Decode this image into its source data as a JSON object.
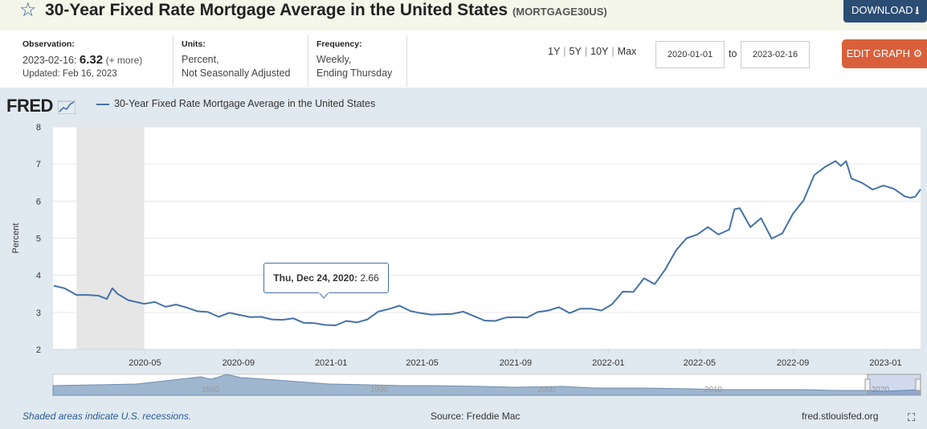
{
  "header": {
    "star_icon": "star-outline-icon",
    "title": "30-Year Fixed Rate Mortgage Average in the United States",
    "series_id": "(MORTGAGE30US)",
    "download_label": "DOWNLOAD",
    "download_icon": "download-icon"
  },
  "meta": {
    "observation_label": "Observation:",
    "observation_date": "2023-02-16:",
    "observation_value": "6.32",
    "observation_more": "(+ more)",
    "updated": "Updated: Feb 16, 2023",
    "units_label": "Units:",
    "units_line1": "Percent,",
    "units_line2": "Not Seasonally Adjusted",
    "frequency_label": "Frequency:",
    "frequency_line1": "Weekly,",
    "frequency_line2": "Ending Thursday"
  },
  "controls": {
    "range_1y": "1Y",
    "range_5y": "5Y",
    "range_10y": "10Y",
    "range_max": "Max",
    "range_sep": "|",
    "start_date": "2020-01-01",
    "to_label": "to",
    "end_date": "2023-02-16",
    "edit_label": "EDIT GRAPH",
    "edit_icon": "gear-icon"
  },
  "chart_meta": {
    "logo": "FRED",
    "footer_recession": "Shaded areas indicate U.S. recessions.",
    "footer_source": "Source: Freddie Mac",
    "footer_site": "fred.stlouisfed.org",
    "tooltip_date": "Thu, Dec 24, 2020:",
    "tooltip_value": "2.66",
    "navigator_labels": [
      "1980",
      "1990",
      "2000",
      "2010",
      "2020"
    ]
  },
  "colors": {
    "line": "#4572a7",
    "recession": "#e6e6e6",
    "edit_button": "#d9603b",
    "download_button": "#2b4d73",
    "header_bg": "#f4f6ea",
    "panel_bg": "#e1e9f0"
  },
  "chart_data": {
    "type": "line",
    "title": "30-Year Fixed Rate Mortgage Average in the United States",
    "xlabel": "",
    "ylabel": "Percent",
    "ylim": [
      2,
      8
    ],
    "yticks": [
      2,
      3,
      4,
      5,
      6,
      7,
      8
    ],
    "xticks": [
      "2020-05",
      "2020-09",
      "2021-01",
      "2021-05",
      "2021-09",
      "2022-01",
      "2022-05",
      "2022-09",
      "2023-01"
    ],
    "xtick_dates": [
      "2020-05-01",
      "2020-09-01",
      "2021-01-01",
      "2021-05-01",
      "2021-09-01",
      "2022-01-01",
      "2022-05-01",
      "2022-09-01",
      "2023-01-01"
    ],
    "xrange": [
      "2020-01-01",
      "2023-02-16"
    ],
    "recession": {
      "start": "2020-02-01",
      "end": "2020-04-30"
    },
    "highlight": {
      "date": "2020-12-24",
      "value": 2.66
    },
    "series": [
      {
        "name": "30-Year Fixed Rate Mortgage Average in the United States",
        "x": [
          "2020-01-02",
          "2020-01-16",
          "2020-02-01",
          "2020-02-16",
          "2020-03-01",
          "2020-03-12",
          "2020-03-19",
          "2020-03-26",
          "2020-04-09",
          "2020-04-30",
          "2020-05-14",
          "2020-05-28",
          "2020-06-11",
          "2020-06-25",
          "2020-07-09",
          "2020-07-23",
          "2020-08-06",
          "2020-08-20",
          "2020-09-03",
          "2020-09-17",
          "2020-10-01",
          "2020-10-15",
          "2020-10-29",
          "2020-11-12",
          "2020-11-26",
          "2020-12-10",
          "2020-12-24",
          "2021-01-07",
          "2021-01-21",
          "2021-02-04",
          "2021-02-18",
          "2021-03-04",
          "2021-03-18",
          "2021-04-01",
          "2021-04-15",
          "2021-04-29",
          "2021-05-13",
          "2021-05-27",
          "2021-06-10",
          "2021-06-24",
          "2021-07-08",
          "2021-07-22",
          "2021-08-05",
          "2021-08-19",
          "2021-09-02",
          "2021-09-16",
          "2021-09-30",
          "2021-10-14",
          "2021-10-28",
          "2021-11-11",
          "2021-11-25",
          "2021-12-09",
          "2021-12-23",
          "2022-01-06",
          "2022-01-20",
          "2022-02-03",
          "2022-02-17",
          "2022-03-03",
          "2022-03-17",
          "2022-03-31",
          "2022-04-14",
          "2022-04-28",
          "2022-05-12",
          "2022-05-26",
          "2022-06-09",
          "2022-06-16",
          "2022-06-23",
          "2022-07-07",
          "2022-07-21",
          "2022-08-04",
          "2022-08-18",
          "2022-09-01",
          "2022-09-15",
          "2022-09-29",
          "2022-10-13",
          "2022-10-27",
          "2022-11-03",
          "2022-11-10",
          "2022-11-17",
          "2022-12-01",
          "2022-12-15",
          "2022-12-29",
          "2023-01-12",
          "2023-01-26",
          "2023-02-02",
          "2023-02-09",
          "2023-02-16"
        ],
        "values": [
          3.72,
          3.65,
          3.47,
          3.47,
          3.45,
          3.36,
          3.65,
          3.5,
          3.33,
          3.23,
          3.28,
          3.15,
          3.21,
          3.13,
          3.03,
          3.01,
          2.88,
          2.99,
          2.93,
          2.87,
          2.88,
          2.81,
          2.8,
          2.84,
          2.72,
          2.71,
          2.66,
          2.65,
          2.77,
          2.73,
          2.81,
          3.02,
          3.09,
          3.18,
          3.04,
          2.98,
          2.94,
          2.95,
          2.96,
          3.02,
          2.9,
          2.78,
          2.77,
          2.86,
          2.87,
          2.86,
          3.01,
          3.05,
          3.14,
          2.98,
          3.1,
          3.1,
          3.05,
          3.22,
          3.56,
          3.55,
          3.92,
          3.76,
          4.16,
          4.67,
          5.0,
          5.1,
          5.3,
          5.1,
          5.23,
          5.78,
          5.81,
          5.3,
          5.54,
          4.99,
          5.13,
          5.66,
          6.02,
          6.7,
          6.92,
          7.08,
          6.95,
          7.08,
          6.61,
          6.49,
          6.31,
          6.42,
          6.33,
          6.13,
          6.09,
          6.12,
          6.32
        ]
      }
    ]
  }
}
